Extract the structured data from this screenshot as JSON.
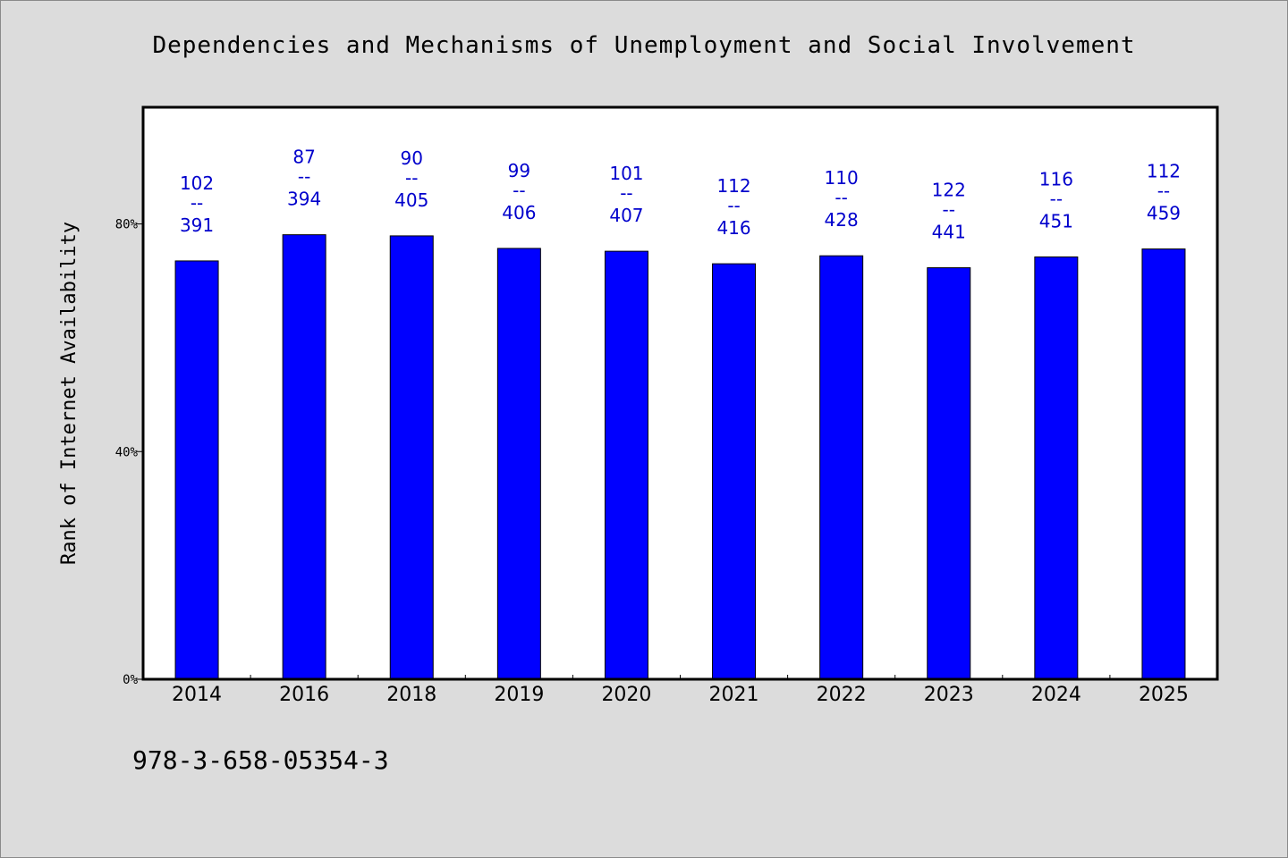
{
  "chart_data": {
    "type": "bar",
    "title": "Dependencies and Mechanisms of Unemployment and Social Involvement",
    "ylabel": "Rank of Internet Availability",
    "xlabel": "",
    "categories": [
      "2014",
      "2016",
      "2018",
      "2019",
      "2020",
      "2021",
      "2022",
      "2023",
      "2024",
      "2025"
    ],
    "values": [
      73.5,
      78.1,
      77.9,
      75.7,
      75.2,
      73.0,
      74.4,
      72.3,
      74.2,
      75.6
    ],
    "value_labels": [
      {
        "top": "102",
        "sep": "--",
        "bottom": "391"
      },
      {
        "top": "87",
        "sep": "--",
        "bottom": "394"
      },
      {
        "top": "90",
        "sep": "--",
        "bottom": "405"
      },
      {
        "top": "99",
        "sep": "--",
        "bottom": "406"
      },
      {
        "top": "101",
        "sep": "--",
        "bottom": "407"
      },
      {
        "top": "112",
        "sep": "--",
        "bottom": "416"
      },
      {
        "top": "110",
        "sep": "--",
        "bottom": "428"
      },
      {
        "top": "122",
        "sep": "--",
        "bottom": "441"
      },
      {
        "top": "116",
        "sep": "--",
        "bottom": "451"
      },
      {
        "top": "112",
        "sep": "--",
        "bottom": "459"
      }
    ],
    "ylim": [
      0,
      100.5
    ],
    "yticks": [
      0,
      40,
      80
    ],
    "ytick_labels": [
      "0%",
      "40%",
      "80%"
    ],
    "grid": false,
    "colors": {
      "bar": "#0000ff",
      "label": "#0000cc",
      "plot_bg": "#ffffff",
      "page_bg": "#dcdcdc"
    }
  },
  "footer": {
    "isbn": "978-3-658-05354-3"
  }
}
